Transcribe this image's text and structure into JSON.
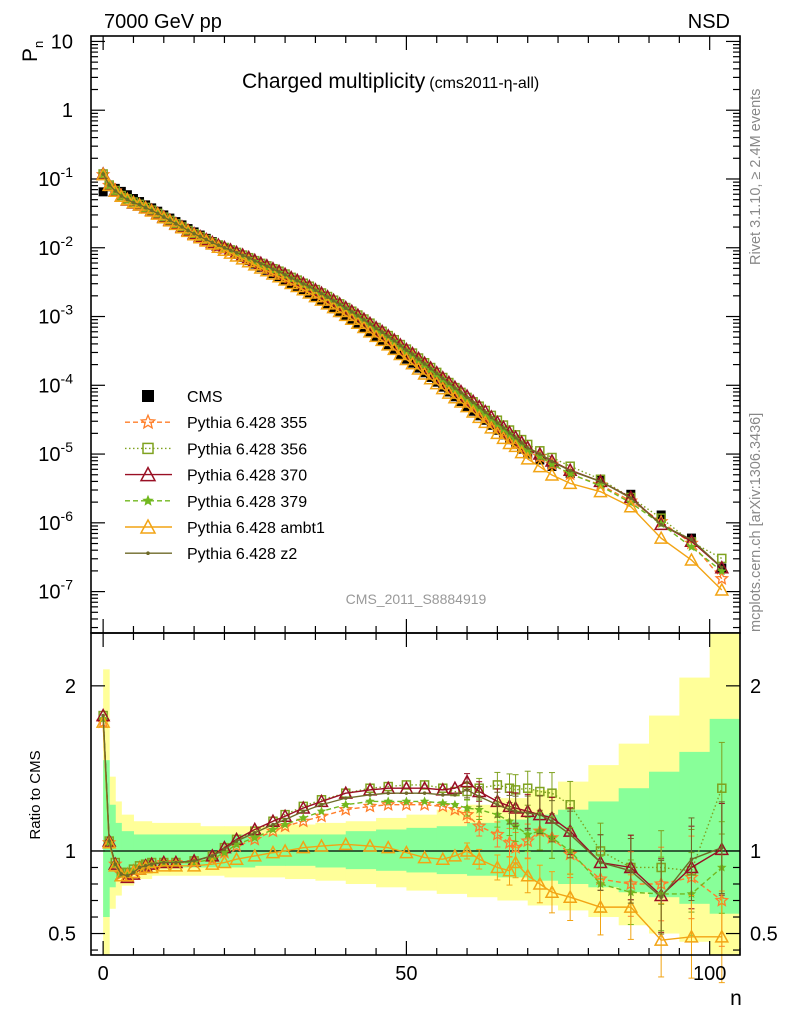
{
  "header": {
    "left": "7000 GeV pp",
    "right": "NSD"
  },
  "chart_data": [
    {
      "type": "line",
      "title": "Charged multiplicity",
      "subtitle": "(cms2011-η-all)",
      "ylabel_main": "P",
      "ylabel_sub": "n",
      "yscale": "log",
      "ylim": [
        2.5e-08,
        12
      ],
      "xlim": [
        -2,
        105
      ],
      "y_tick_labels": [
        "10",
        "1",
        "10^-1",
        "10^-2",
        "10^-3",
        "10^-4",
        "10^-5",
        "10^-6",
        "10^-7"
      ],
      "analysis_label": "CMS_2011_S8884919",
      "legend_position": "left, lower middle",
      "series": [
        {
          "name": "CMS",
          "color": "#000000",
          "marker": "square-filled",
          "dash": "none"
        },
        {
          "name": "Pythia 6.428 355",
          "color": "#ff7f2a",
          "marker": "star-open",
          "dash": "dashed"
        },
        {
          "name": "Pythia 6.428 356",
          "color": "#7fa21f",
          "marker": "square-open",
          "dash": "dotted"
        },
        {
          "name": "Pythia 6.428 370",
          "color": "#990f24",
          "marker": "triangle-open",
          "dash": "solid"
        },
        {
          "name": "Pythia 6.428 379",
          "color": "#72b81f",
          "marker": "star-filled",
          "dash": "dashed"
        },
        {
          "name": "Pythia 6.428 ambt1",
          "color": "#f2a414",
          "marker": "triangle-open",
          "dash": "solid"
        },
        {
          "name": "Pythia 6.428 z2",
          "color": "#6e6a28",
          "marker": "dot",
          "dash": "solid"
        }
      ],
      "x": [
        0,
        1,
        2,
        3,
        4,
        5,
        6,
        7,
        8,
        9,
        10,
        11,
        12,
        13,
        14,
        15,
        16,
        17,
        18,
        19,
        20,
        21,
        22,
        23,
        24,
        25,
        26,
        27,
        28,
        29,
        30,
        31,
        32,
        33,
        34,
        35,
        36,
        37,
        38,
        39,
        40,
        41,
        42,
        43,
        44,
        45,
        46,
        47,
        48,
        49,
        50,
        51,
        52,
        53,
        54,
        55,
        56,
        57,
        58,
        59,
        60,
        61,
        62,
        63,
        64,
        65,
        66,
        67,
        68,
        69,
        70,
        72,
        74,
        77,
        82,
        87,
        92,
        97,
        102
      ],
      "values": [
        0.065,
        0.077,
        0.073,
        0.066,
        0.059,
        0.052,
        0.047,
        0.042,
        0.038,
        0.034,
        0.03,
        0.027,
        0.024,
        0.0215,
        0.019,
        0.017,
        0.0153,
        0.0137,
        0.0123,
        0.011,
        0.0099,
        0.0089,
        0.008,
        0.0072,
        0.0065,
        0.0058,
        0.0052,
        0.0047,
        0.0042,
        0.0038,
        0.0034,
        0.003,
        0.0027,
        0.0024,
        0.00215,
        0.0019,
        0.00168,
        0.00148,
        0.0013,
        0.00114,
        0.001,
        0.00088,
        0.00077,
        0.00067,
        0.00058,
        0.0005,
        0.00044,
        0.00038,
        0.00033,
        0.00028,
        0.00024,
        0.00021,
        0.000178,
        0.000152,
        0.00013,
        0.000111,
        9.4e-05,
        8e-05,
        6.8e-05,
        5.8e-05,
        4.9e-05,
        4.2e-05,
        3.6e-05,
        3.1e-05,
        2.62e-05,
        2.22e-05,
        1.9e-05,
        1.62e-05,
        1.39e-05,
        1.18e-05,
        1e-05,
        8.2e-06,
        6.6e-06,
        5.2e-06,
        4.3e-06,
        2.6e-06,
        1.3e-06,
        6e-07,
        2.2e-07
      ],
      "ratio": {
        "ylabel": "Ratio to CMS",
        "ylim": [
          0.37,
          2.32
        ],
        "y_ticks": [
          0.5,
          1,
          2
        ],
        "x_ticks": [
          0,
          50,
          100
        ],
        "xlabel": "n",
        "band_edges": [
          0,
          1,
          2,
          3,
          5,
          8,
          12,
          16,
          20,
          25,
          30,
          35,
          40,
          45,
          50,
          55,
          60,
          65,
          70,
          75,
          80,
          85,
          90,
          95,
          100,
          105
        ],
        "band_green": [
          [
            0.6,
            1.55
          ],
          [
            0.78,
            1.28
          ],
          [
            0.84,
            1.17
          ],
          [
            0.87,
            1.12
          ],
          [
            0.89,
            1.1
          ],
          [
            0.9,
            1.1
          ],
          [
            0.9,
            1.1
          ],
          [
            0.9,
            1.1
          ],
          [
            0.9,
            1.1
          ],
          [
            0.91,
            1.1
          ],
          [
            0.91,
            1.1
          ],
          [
            0.9,
            1.1
          ],
          [
            0.89,
            1.12
          ],
          [
            0.88,
            1.13
          ],
          [
            0.87,
            1.14
          ],
          [
            0.86,
            1.15
          ],
          [
            0.85,
            1.17
          ],
          [
            0.84,
            1.19
          ],
          [
            0.82,
            1.22
          ],
          [
            0.8,
            1.25
          ],
          [
            0.78,
            1.3
          ],
          [
            0.75,
            1.38
          ],
          [
            0.72,
            1.48
          ],
          [
            0.68,
            1.6
          ],
          [
            0.62,
            1.8
          ]
        ],
        "band_yellow": [
          [
            0.37,
            2.1
          ],
          [
            0.65,
            1.45
          ],
          [
            0.73,
            1.3
          ],
          [
            0.79,
            1.22
          ],
          [
            0.83,
            1.18
          ],
          [
            0.85,
            1.17
          ],
          [
            0.85,
            1.17
          ],
          [
            0.85,
            1.15
          ],
          [
            0.84,
            1.15
          ],
          [
            0.84,
            1.15
          ],
          [
            0.83,
            1.16
          ],
          [
            0.82,
            1.17
          ],
          [
            0.8,
            1.18
          ],
          [
            0.78,
            1.2
          ],
          [
            0.76,
            1.22
          ],
          [
            0.74,
            1.25
          ],
          [
            0.72,
            1.28
          ],
          [
            0.7,
            1.32
          ],
          [
            0.67,
            1.37
          ],
          [
            0.64,
            1.42
          ],
          [
            0.6,
            1.52
          ],
          [
            0.55,
            1.65
          ],
          [
            0.5,
            1.82
          ],
          [
            0.45,
            2.05
          ],
          [
            0.37,
            2.32
          ]
        ],
        "ratio_x": [
          0,
          1,
          2,
          3,
          4,
          5,
          6,
          7,
          8,
          10,
          12,
          15,
          18,
          20,
          22,
          25,
          28,
          30,
          33,
          36,
          40,
          44,
          47,
          50,
          53,
          56,
          58,
          60,
          62,
          65,
          67,
          68,
          70,
          72,
          74,
          77,
          82,
          87,
          92,
          97,
          102
        ],
        "series_ratios": {
          "Pythia 6.428 355": [
            1.78,
            1.05,
            0.92,
            0.86,
            0.86,
            0.88,
            0.9,
            0.91,
            0.92,
            0.93,
            0.93,
            0.93,
            0.95,
            0.99,
            1.03,
            1.07,
            1.12,
            1.15,
            1.18,
            1.21,
            1.25,
            1.27,
            1.28,
            1.28,
            1.28,
            1.27,
            1.25,
            1.22,
            1.15,
            1.1,
            1.05,
            1.02,
            1.06,
            1.12,
            1.08,
            0.98,
            0.83,
            0.8,
            0.8,
            0.84,
            0.7
          ],
          "Pythia 6.428 356": [
            1.82,
            1.06,
            0.93,
            0.87,
            0.87,
            0.89,
            0.91,
            0.92,
            0.93,
            0.93,
            0.93,
            0.94,
            0.97,
            1.02,
            1.07,
            1.12,
            1.18,
            1.22,
            1.27,
            1.31,
            1.35,
            1.38,
            1.39,
            1.4,
            1.4,
            1.38,
            1.36,
            1.36,
            1.38,
            1.4,
            1.38,
            1.37,
            1.38,
            1.36,
            1.35,
            1.28,
            1.0,
            0.9,
            0.9,
            0.88,
            1.38
          ],
          "Pythia 6.428 370": [
            1.82,
            1.06,
            0.92,
            0.85,
            0.84,
            0.86,
            0.89,
            0.91,
            0.92,
            0.93,
            0.93,
            0.94,
            0.97,
            1.02,
            1.07,
            1.13,
            1.18,
            1.21,
            1.26,
            1.3,
            1.35,
            1.37,
            1.38,
            1.38,
            1.38,
            1.37,
            1.38,
            1.42,
            1.36,
            1.3,
            1.27,
            1.26,
            1.24,
            1.22,
            1.2,
            1.12,
            0.93,
            0.9,
            0.73,
            0.9,
            1.01
          ],
          "Pythia 6.428 379": [
            1.8,
            1.05,
            0.92,
            0.86,
            0.86,
            0.88,
            0.9,
            0.91,
            0.92,
            0.93,
            0.93,
            0.93,
            0.95,
            0.99,
            1.04,
            1.08,
            1.13,
            1.16,
            1.2,
            1.24,
            1.28,
            1.3,
            1.3,
            1.3,
            1.3,
            1.29,
            1.28,
            1.26,
            1.25,
            1.22,
            1.18,
            1.15,
            1.1,
            1.12,
            1.08,
            1.0,
            0.8,
            0.75,
            0.74,
            0.74,
            0.9
          ],
          "Pythia 6.428 ambt1": [
            1.78,
            1.05,
            0.91,
            0.85,
            0.85,
            0.87,
            0.89,
            0.9,
            0.9,
            0.91,
            0.91,
            0.91,
            0.92,
            0.93,
            0.95,
            0.97,
            0.99,
            1.0,
            1.02,
            1.03,
            1.04,
            1.03,
            1.02,
            0.99,
            0.96,
            0.95,
            0.97,
            1.0,
            0.95,
            0.9,
            0.88,
            0.93,
            0.85,
            0.8,
            0.75,
            0.72,
            0.66,
            0.66,
            0.46,
            0.48,
            0.48
          ],
          "Pythia 6.428 z2": [
            1.82,
            1.06,
            0.92,
            0.86,
            0.85,
            0.87,
            0.9,
            0.91,
            0.92,
            0.93,
            0.93,
            0.94,
            0.97,
            1.01,
            1.06,
            1.11,
            1.16,
            1.19,
            1.24,
            1.28,
            1.32,
            1.34,
            1.35,
            1.35,
            1.35,
            1.34,
            1.34,
            1.37,
            1.33,
            1.28,
            1.25,
            1.24,
            1.23,
            1.22,
            1.18,
            1.1,
            0.93,
            0.88,
            0.72,
            0.95,
            1.02
          ]
        }
      }
    }
  ],
  "side_labels": {
    "rivet": "Rivet 3.1.10, ≥ 2.4M events",
    "mcplots": "mcplots.cern.ch [arXiv:1306.3436]"
  }
}
